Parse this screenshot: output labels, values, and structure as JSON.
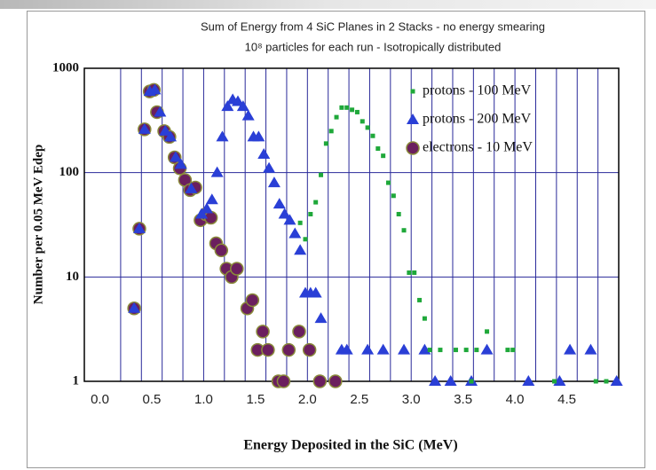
{
  "chart_data": {
    "type": "scatter",
    "title": "Sum of Energy from 4 SiC Planes in 2 Stacks - no energy smearing",
    "subtitle": "10⁸ particles for each run - Isotropically distributed",
    "x_label": "Energy Deposited in the SiC  (MeV)",
    "y_label": "Number per 0.05 MeV Edep",
    "xlim": [
      -0.15,
      5.0
    ],
    "ylim": [
      1,
      1000
    ],
    "log_y": true,
    "grid": true,
    "legend": "upper right",
    "xticks": [
      {
        "value": 0,
        "label": "0.0"
      },
      0.5,
      {
        "value": 1,
        "label": "1.0"
      },
      1.5,
      {
        "value": 2,
        "label": "2.0"
      },
      2.5,
      {
        "value": 3,
        "label": "3.0"
      },
      3.5,
      {
        "value": 4,
        "label": "4.0"
      },
      4.5
    ],
    "xgrid": [
      0.2,
      0.4,
      0.6,
      0.8,
      1.0,
      1.2,
      1.4,
      1.6,
      1.8,
      2.0,
      2.2,
      2.4,
      2.6,
      2.8,
      3.0,
      3.2,
      3.4,
      3.6,
      3.8,
      4.0,
      4.2,
      4.4,
      4.6,
      4.8
    ],
    "yticks": [
      1,
      10,
      100,
      1000
    ],
    "series": [
      {
        "name": "protons - 100 MeV",
        "color": "#1fa83a",
        "marker": "square",
        "x": [
          1.93,
          1.98,
          2.03,
          2.08,
          2.13,
          2.18,
          2.23,
          2.28,
          2.33,
          2.38,
          2.43,
          2.48,
          2.53,
          2.58,
          2.63,
          2.68,
          2.73,
          2.78,
          2.83,
          2.88,
          2.93,
          2.98,
          3.03,
          3.08,
          3.13,
          3.18,
          3.28,
          3.43,
          3.53,
          3.58,
          3.63,
          3.73,
          3.93,
          3.98,
          4.38,
          4.78,
          4.88
        ],
        "values": [
          33,
          23,
          40,
          52,
          95,
          190,
          250,
          340,
          420,
          420,
          400,
          380,
          310,
          270,
          225,
          170,
          145,
          80,
          60,
          40,
          28,
          11,
          11,
          6,
          4,
          2,
          2,
          2,
          2,
          1,
          2,
          3,
          2,
          2,
          1,
          1,
          1
        ]
      },
      {
        "name": "protons - 200 MeV",
        "color": "#2a3fd6",
        "marker": "triangle",
        "x": [
          0.33,
          0.38,
          0.43,
          0.48,
          0.53,
          0.58,
          0.63,
          0.68,
          0.73,
          0.78,
          0.88,
          0.98,
          1.03,
          1.08,
          1.13,
          1.18,
          1.23,
          1.28,
          1.33,
          1.38,
          1.43,
          1.48,
          1.53,
          1.58,
          1.63,
          1.68,
          1.73,
          1.78,
          1.83,
          1.88,
          1.93,
          1.98,
          2.03,
          2.08,
          2.13,
          2.33,
          2.38,
          2.58,
          2.73,
          2.93,
          3.13,
          3.23,
          3.38,
          3.58,
          3.73,
          4.13,
          4.43,
          4.53,
          4.73,
          4.98
        ],
        "values": [
          5,
          29,
          260,
          600,
          620,
          380,
          250,
          220,
          140,
          120,
          70,
          40,
          45,
          55,
          100,
          220,
          430,
          500,
          480,
          430,
          350,
          220,
          220,
          150,
          110,
          80,
          50,
          40,
          35,
          26,
          18,
          7,
          7,
          7,
          4,
          2,
          2,
          2,
          2,
          2,
          2,
          1,
          1,
          1,
          2,
          1,
          1,
          2,
          2,
          1
        ]
      },
      {
        "name": "electrons - 10 MeV",
        "color": "#6b1f5e",
        "marker": "circle",
        "x": [
          0.33,
          0.38,
          0.43,
          0.48,
          0.52,
          0.55,
          0.62,
          0.67,
          0.72,
          0.77,
          0.82,
          0.87,
          0.92,
          0.97,
          1.02,
          1.07,
          1.12,
          1.17,
          1.22,
          1.27,
          1.32,
          1.42,
          1.47,
          1.52,
          1.57,
          1.62,
          1.72,
          1.77,
          1.82,
          1.92,
          2.02,
          2.12,
          2.27
        ],
        "values": [
          5,
          29,
          260,
          600,
          620,
          380,
          250,
          220,
          140,
          110,
          85,
          68,
          72,
          35,
          40,
          37,
          21,
          18,
          12,
          10,
          12,
          5,
          6,
          2,
          3,
          2,
          1,
          1,
          2,
          3,
          2,
          1,
          1
        ]
      }
    ]
  }
}
